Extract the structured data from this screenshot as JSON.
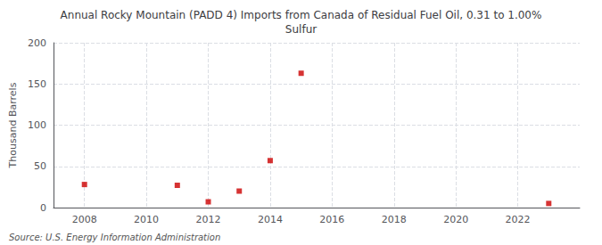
{
  "chart_data": {
    "type": "scatter",
    "title": "Annual Rocky Mountain (PADD 4) Imports from Canada of Residual Fuel Oil, 0.31 to 1.00%\nSulfur",
    "ylabel": "Thousand Barrels",
    "annotations": [
      "Source: U.S. Energy Information Administration"
    ],
    "x": [
      2008,
      2011,
      2012,
      2013,
      2014,
      2015,
      2023
    ],
    "values": [
      28,
      27,
      7,
      20,
      57,
      163,
      5
    ],
    "color": "#cc0000",
    "marker": "square",
    "xlim": [
      2007,
      2024
    ],
    "xticks": [
      2008,
      2010,
      2012,
      2014,
      2016,
      2018,
      2020,
      2022
    ],
    "ylim": [
      0,
      200
    ],
    "yticks": [
      0,
      50,
      100,
      150,
      200
    ],
    "grid": true
  }
}
